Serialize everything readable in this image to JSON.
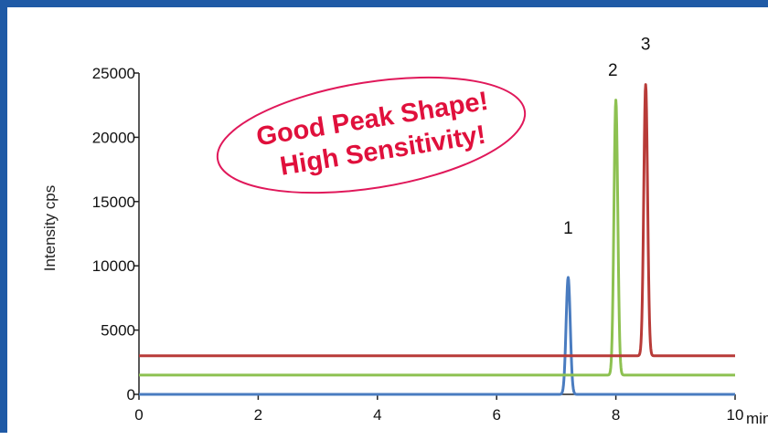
{
  "chart_data": {
    "type": "line",
    "title": "",
    "xlabel": "",
    "x_unit": "min",
    "ylabel": "Intensity cps",
    "xlim": [
      0,
      10
    ],
    "ylim": [
      0,
      25000
    ],
    "x_ticks": [
      "0",
      "2",
      "4",
      "6",
      "8",
      "10"
    ],
    "y_ticks": [
      "0",
      "5000",
      "10000",
      "15000",
      "20000",
      "25000"
    ],
    "grid": false,
    "series": [
      {
        "color": "#4a7cc0",
        "baseline": 0,
        "peak_label": "1",
        "peak": {
          "center": 7.2,
          "height": 9100,
          "width": 0.035
        },
        "label_at": {
          "x": 7.2,
          "y": 12500
        }
      },
      {
        "color": "#8dc151",
        "baseline": 1500,
        "peak_label": "2",
        "peak": {
          "center": 8.0,
          "height": 21400,
          "width": 0.032
        },
        "label_at": {
          "x": 7.95,
          "y": 24800
        }
      },
      {
        "color": "#b83b38",
        "baseline": 3000,
        "peak_label": "3",
        "peak": {
          "center": 8.5,
          "height": 21100,
          "width": 0.032
        },
        "label_at": {
          "x": 8.5,
          "y": 26800
        }
      }
    ],
    "annotation": {
      "lines": [
        "Good Peak Shape!",
        "High Sensitivity!"
      ],
      "text_color": "#e0103c",
      "border_color": "#e0185a"
    }
  }
}
